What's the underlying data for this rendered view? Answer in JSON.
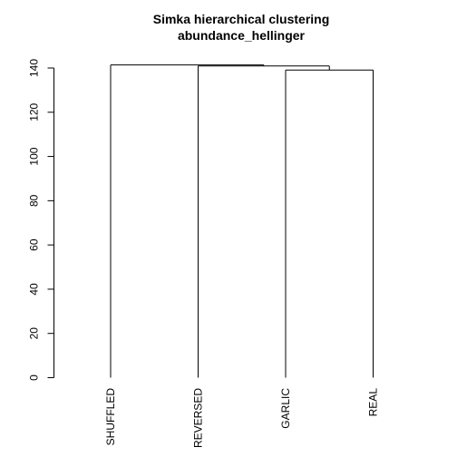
{
  "chart_data": {
    "type": "dendrogram",
    "title": "Simka hierarchical clustering",
    "subtitle": "abundance_hellinger",
    "xlabel": "",
    "ylabel": "",
    "ylim": [
      0,
      140
    ],
    "yticks": [
      "0",
      "20",
      "40",
      "60",
      "80",
      "100",
      "120",
      "140"
    ],
    "leaves": [
      "SHUFFLED",
      "REVERSED",
      "GARLIC",
      "REAL"
    ],
    "merges": [
      {
        "left": "GARLIC",
        "right": "REAL",
        "height": 139.1
      },
      {
        "left": "REVERSED",
        "right": "GARLIC+REAL",
        "height": 140.9
      },
      {
        "left": "SHUFFLED",
        "right": "REVERSED+GARLIC+REAL",
        "height": 141.4
      }
    ]
  }
}
